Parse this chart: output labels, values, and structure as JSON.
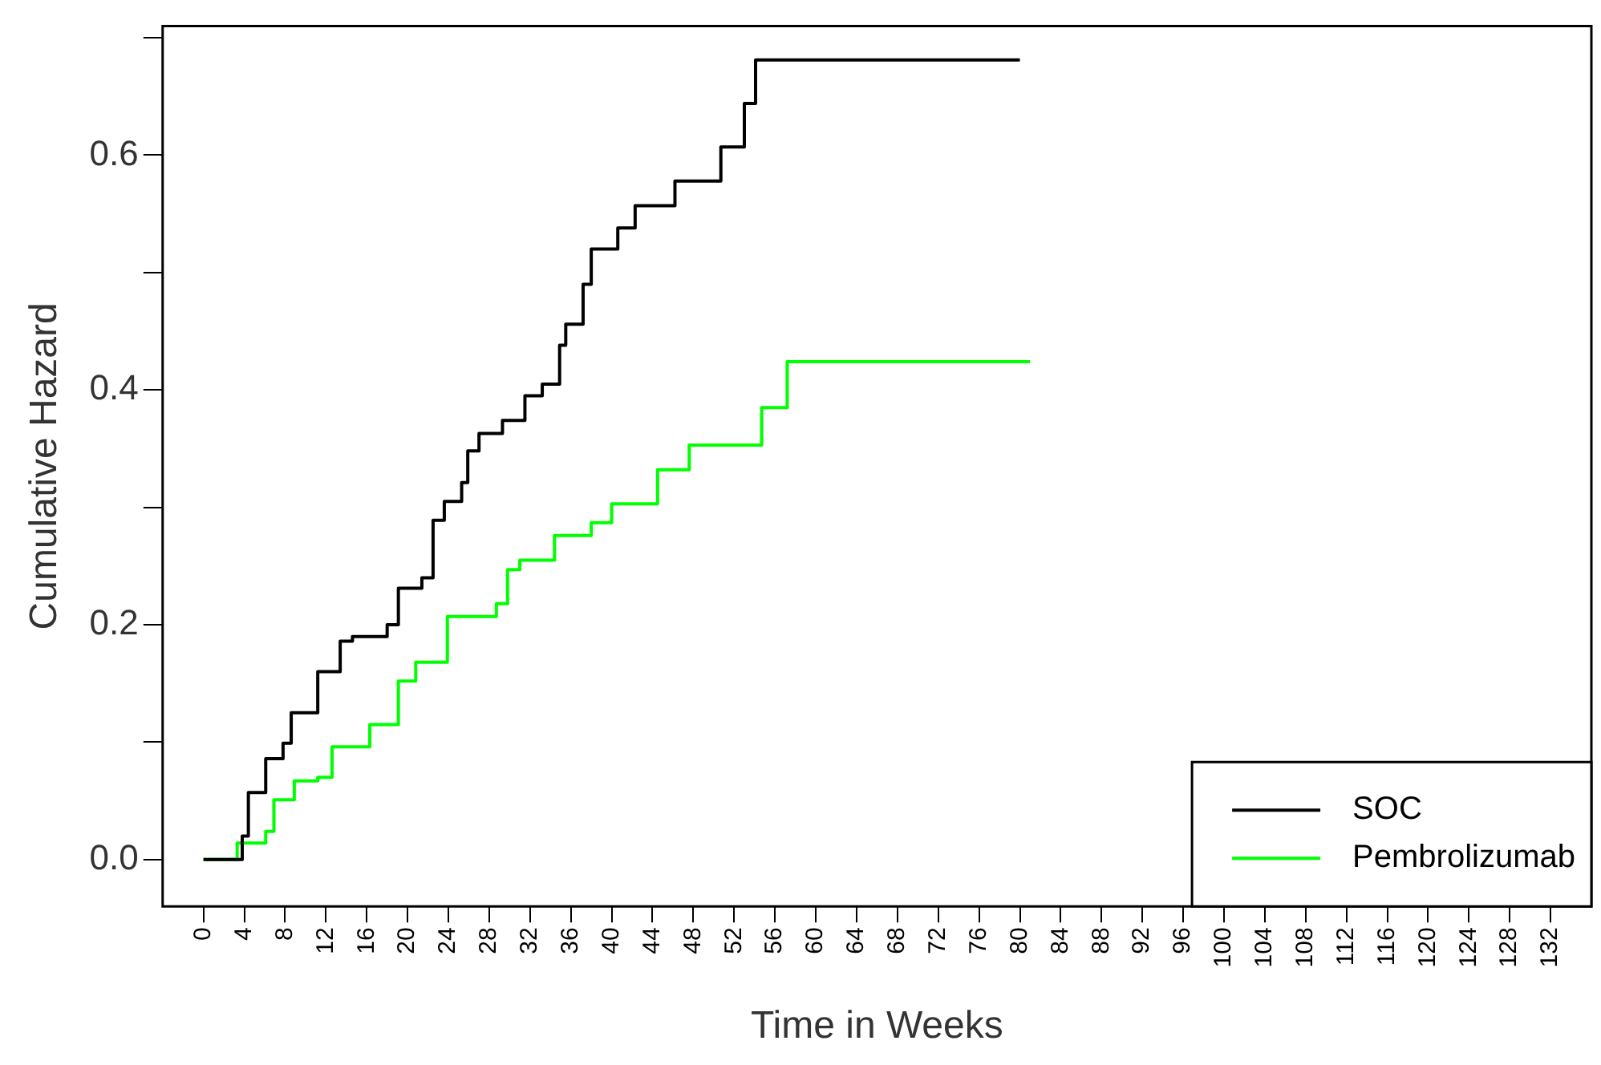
{
  "chart_data": {
    "type": "step",
    "xlabel": "Time in Weeks",
    "ylabel": "Cumulative Hazard",
    "xlim": [
      -4,
      136
    ],
    "ylim": [
      -0.04,
      0.71
    ],
    "xticks": [
      0,
      4,
      8,
      12,
      16,
      20,
      24,
      28,
      32,
      36,
      40,
      44,
      48,
      52,
      56,
      60,
      64,
      68,
      72,
      76,
      80,
      84,
      88,
      92,
      96,
      100,
      104,
      108,
      112,
      116,
      120,
      124,
      128,
      132
    ],
    "yticks": [
      {
        "value": 0,
        "label": "0.0"
      },
      {
        "value": 0.1,
        "label": null
      },
      {
        "value": 0.2,
        "label": "0.2"
      },
      {
        "value": 0.3,
        "label": null
      },
      {
        "value": 0.4,
        "label": "0.4"
      },
      {
        "value": 0.5,
        "label": null
      },
      {
        "value": 0.6,
        "label": "0.6"
      },
      {
        "value": 0.7,
        "label": null
      }
    ],
    "grid": false,
    "legend": "bottom right",
    "marker": "none",
    "line_style": "solid",
    "series": [
      {
        "name": "SOC",
        "color": "#000000",
        "x": [
          0,
          3.8,
          4.4,
          6.1,
          7.8,
          8.6,
          11.2,
          13.4,
          14.6,
          18,
          19.1,
          21.4,
          22.5,
          23.6,
          25.3,
          25.9,
          27,
          29.3,
          31.5,
          33.2,
          34.9,
          35.5,
          37.2,
          38,
          40.6,
          42.3,
          46.2,
          50.7,
          53,
          54.1,
          80
        ],
        "values": [
          0,
          0.02,
          0.057,
          0.086,
          0.099,
          0.125,
          0.16,
          0.186,
          0.19,
          0.2,
          0.231,
          0.24,
          0.289,
          0.305,
          0.321,
          0.348,
          0.363,
          0.374,
          0.395,
          0.405,
          0.438,
          0.456,
          0.49,
          0.52,
          0.538,
          0.557,
          0.578,
          0.607,
          0.644,
          0.681,
          0.681
        ]
      },
      {
        "name": "Pembrolizumab",
        "color": "#00ff00",
        "x": [
          0,
          3.3,
          6.1,
          6.9,
          8.9,
          11.2,
          12.6,
          16.3,
          19.1,
          20.8,
          23.9,
          28.7,
          29.8,
          31,
          34.4,
          38,
          40,
          44.5,
          47.6,
          54.7,
          57.2,
          81
        ],
        "values": [
          0,
          0.014,
          0.024,
          0.051,
          0.067,
          0.07,
          0.096,
          0.115,
          0.152,
          0.168,
          0.207,
          0.218,
          0.247,
          0.255,
          0.276,
          0.287,
          0.303,
          0.332,
          0.353,
          0.385,
          0.424,
          0.424
        ]
      }
    ]
  }
}
